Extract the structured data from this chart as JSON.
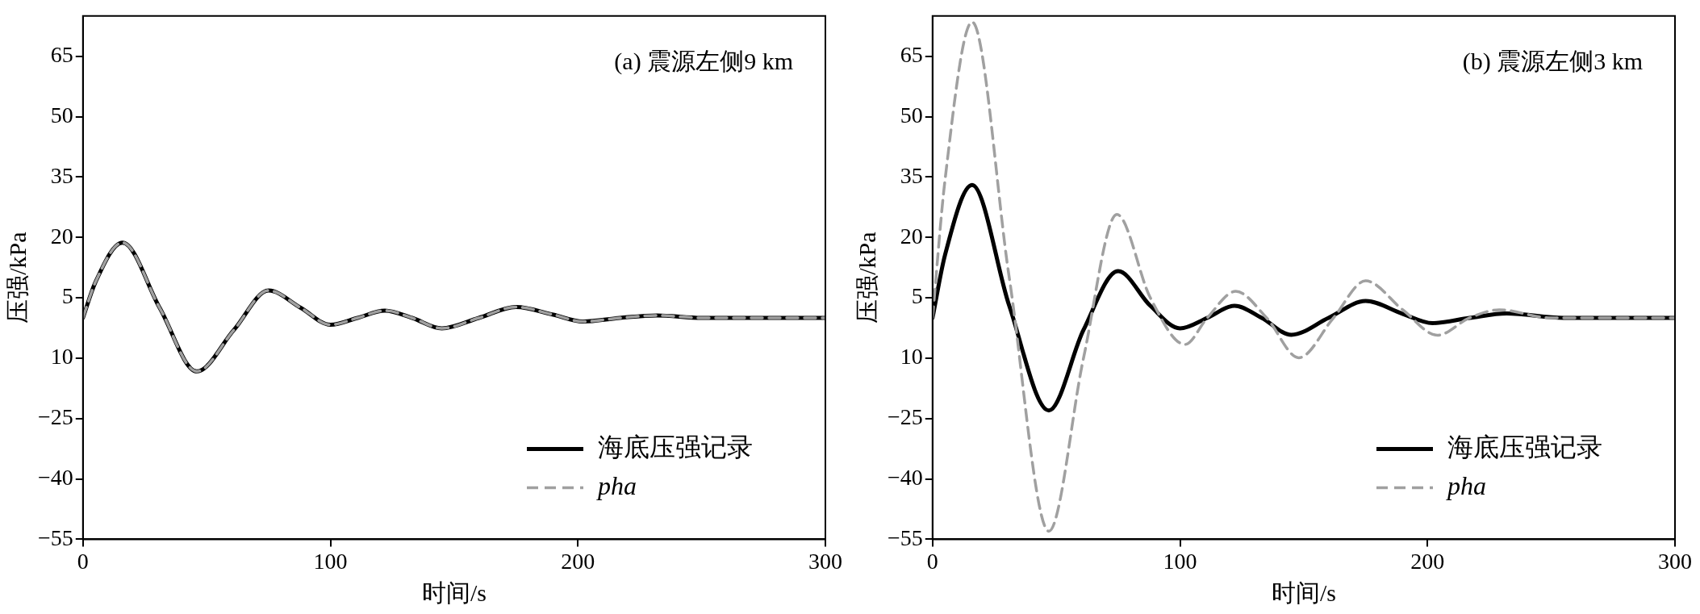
{
  "chart_data": [
    {
      "type": "line",
      "title": "(a) 震源左侧9 km",
      "xlabel": "时间/s",
      "ylabel": "压强/kPa",
      "xlim": [
        0,
        300
      ],
      "xticks": [
        0,
        100,
        200,
        300
      ],
      "ylim": [
        -55,
        75
      ],
      "yticks": [
        {
          "value": -55,
          "label": "−55"
        },
        {
          "value": -40,
          "label": "−40"
        },
        {
          "value": -25,
          "label": "−25"
        },
        {
          "value": -10,
          "label": "10"
        },
        5,
        20,
        35,
        50,
        65
      ],
      "legend": "bottom right",
      "series": [
        {
          "name": "海底压强记录",
          "color": "#000000",
          "line_style": "solid",
          "x": [
            0,
            5,
            16,
            31,
            46,
            61,
            75,
            88,
            100,
            111,
            122,
            133,
            145,
            160,
            175,
            190,
            202,
            217,
            232,
            250,
            300
          ],
          "values": [
            0,
            8.8,
            18.7,
            2.5,
            -13.3,
            -3,
            6.8,
            2.5,
            -1.7,
            0,
            1.8,
            0,
            -2.6,
            0,
            2.7,
            0.8,
            -0.9,
            0,
            0.6,
            0,
            0
          ]
        },
        {
          "name": "pha",
          "color": "#a0a0a0",
          "line_style": "dashed",
          "x": [
            0,
            5,
            16,
            31,
            46,
            61,
            75,
            88,
            100,
            111,
            122,
            133,
            145,
            160,
            175,
            190,
            202,
            217,
            232,
            250,
            300
          ],
          "values": [
            0,
            8.8,
            18.7,
            2.5,
            -13.3,
            -3,
            6.8,
            2.5,
            -1.7,
            0,
            1.8,
            0,
            -2.6,
            0,
            2.7,
            0.8,
            -0.9,
            0,
            0.6,
            0,
            0
          ]
        }
      ]
    },
    {
      "type": "line",
      "title": "(b) 震源左侧3 km",
      "xlabel": "时间/s",
      "ylabel": "压强/kPa",
      "xlim": [
        0,
        300
      ],
      "xticks": [
        0,
        100,
        200,
        300
      ],
      "ylim": [
        -55,
        75
      ],
      "yticks": [
        {
          "value": -55,
          "label": "−55"
        },
        {
          "value": -40,
          "label": "−40"
        },
        {
          "value": -25,
          "label": "−25"
        },
        {
          "value": -10,
          "label": "10"
        },
        5,
        20,
        35,
        50,
        65
      ],
      "legend": "bottom right",
      "series": [
        {
          "name": "海底压强记录",
          "color": "#000000",
          "line_style": "solid",
          "x": [
            0,
            5,
            16,
            31,
            47,
            61,
            75,
            88,
            100,
            111,
            122,
            133,
            145,
            160,
            175,
            190,
            202,
            217,
            232,
            255,
            300
          ],
          "values": [
            0,
            15.5,
            33,
            3,
            -23,
            -3,
            11.6,
            3,
            -2.6,
            0,
            3,
            0,
            -4.2,
            0,
            4.2,
            1,
            -1.3,
            0,
            1.1,
            0,
            0
          ]
        },
        {
          "name": "pha",
          "color": "#a0a0a0",
          "line_style": "dashed",
          "x": [
            0,
            5,
            16,
            31,
            47,
            61,
            74.5,
            88,
            102,
            111,
            122.5,
            135,
            148,
            162,
            175,
            190,
            204,
            217,
            229,
            250,
            300
          ],
          "values": [
            0,
            34,
            73.5,
            10,
            -53,
            -10,
            25.7,
            5,
            -6.6,
            0,
            6.6,
            0,
            -9.9,
            0,
            9.2,
            2,
            -4.3,
            0,
            2,
            0,
            0
          ]
        }
      ]
    }
  ]
}
